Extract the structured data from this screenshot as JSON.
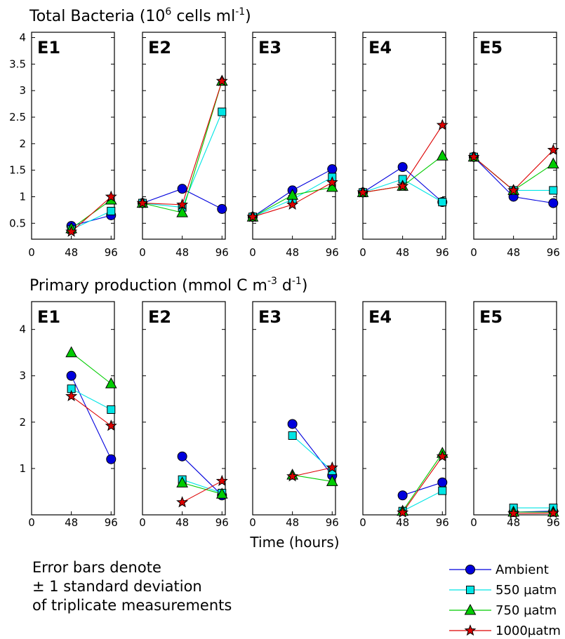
{
  "figure": {
    "top_title": {
      "prefix": "Total Bacteria (10",
      "sup1": "6",
      "mid": " cells ml",
      "sup2": "-1",
      "suffix": ")"
    },
    "bottom_title": {
      "prefix": "Primary production (mmol C m",
      "sup1": "-3",
      "mid": " d",
      "sup2": "-1",
      "suffix": ")"
    },
    "xlabel": "Time (hours)",
    "note_lines": [
      "Error bars denote",
      "± 1 standard deviation",
      "of triplicate measurements"
    ]
  },
  "chart_data": [
    {
      "type": "line",
      "title": "Total Bacteria (10^6 cells ml-1)",
      "xlabel": "Time (hours)",
      "ylim": [
        0.2,
        4.1
      ],
      "yticks": [
        "0.5",
        "1",
        "1.5",
        "2",
        "2.5",
        "3",
        "3.5",
        "4"
      ],
      "xticks": [
        "0",
        "48",
        "96"
      ],
      "xlim": [
        0,
        100
      ],
      "series_colors": {
        "Ambient": "#0000dd",
        "550 µatm": "#00e5e5",
        "750 µatm": "#00cc00",
        "1000µatm": "#dd0000"
      },
      "panels": [
        {
          "label": "E1",
          "x": [
            48,
            96
          ],
          "series": [
            {
              "name": "Ambient",
              "values": [
                0.45,
                0.65
              ]
            },
            {
              "name": "550 µatm",
              "values": [
                0.38,
                0.73
              ]
            },
            {
              "name": "750 µatm",
              "values": [
                0.4,
                0.94
              ]
            },
            {
              "name": "1000µatm",
              "values": [
                0.34,
                1.0
              ]
            }
          ]
        },
        {
          "label": "E2",
          "x": [
            0,
            48,
            96
          ],
          "series": [
            {
              "name": "Ambient",
              "values": [
                0.88,
                1.15,
                0.77
              ]
            },
            {
              "name": "550 µatm",
              "values": [
                0.88,
                0.8,
                2.6
              ]
            },
            {
              "name": "750 µatm",
              "values": [
                0.88,
                0.7,
                3.18
              ]
            },
            {
              "name": "1000µatm",
              "values": [
                0.88,
                0.85,
                3.18
              ]
            }
          ]
        },
        {
          "label": "E3",
          "x": [
            0,
            48,
            96
          ],
          "series": [
            {
              "name": "Ambient",
              "values": [
                0.62,
                1.12,
                1.52
              ]
            },
            {
              "name": "550 µatm",
              "values": [
                0.62,
                0.95,
                1.37
              ]
            },
            {
              "name": "750 µatm",
              "values": [
                0.62,
                1.03,
                1.18
              ]
            },
            {
              "name": "1000µatm",
              "values": [
                0.62,
                0.85,
                1.27
              ]
            }
          ]
        },
        {
          "label": "E4",
          "x": [
            0,
            48,
            96
          ],
          "series": [
            {
              "name": "Ambient",
              "values": [
                1.08,
                1.56,
                0.9
              ]
            },
            {
              "name": "550 µatm",
              "values": [
                1.08,
                1.33,
                0.9
              ]
            },
            {
              "name": "750 µatm",
              "values": [
                1.08,
                1.2,
                1.77
              ]
            },
            {
              "name": "1000µatm",
              "values": [
                1.08,
                1.2,
                2.35
              ]
            }
          ]
        },
        {
          "label": "E5",
          "x": [
            0,
            48,
            96
          ],
          "series": [
            {
              "name": "Ambient",
              "values": [
                1.75,
                1.0,
                0.88
              ]
            },
            {
              "name": "550 µatm",
              "values": [
                1.75,
                1.12,
                1.12
              ]
            },
            {
              "name": "750 µatm",
              "values": [
                1.75,
                1.12,
                1.62
              ]
            },
            {
              "name": "1000µatm",
              "values": [
                1.75,
                1.12,
                1.88
              ]
            }
          ]
        }
      ]
    },
    {
      "type": "line",
      "title": "Primary production (mmol C m-3 d-1)",
      "xlabel": "Time (hours)",
      "ylim": [
        0,
        4.6
      ],
      "yticks": [
        "1",
        "2",
        "3",
        "4"
      ],
      "xticks": [
        "0",
        "48",
        "96"
      ],
      "xlim": [
        0,
        100
      ],
      "panels": [
        {
          "label": "E1",
          "x": [
            48,
            96
          ],
          "series": [
            {
              "name": "Ambient",
              "values": [
                3.0,
                1.2
              ]
            },
            {
              "name": "550 µatm",
              "values": [
                2.72,
                2.27
              ]
            },
            {
              "name": "750 µatm",
              "values": [
                3.5,
                2.83
              ]
            },
            {
              "name": "1000µatm",
              "values": [
                2.56,
                1.92
              ]
            }
          ]
        },
        {
          "label": "E2",
          "x": [
            48,
            96
          ],
          "series": [
            {
              "name": "Ambient",
              "values": [
                1.26,
                0.42
              ]
            },
            {
              "name": "550 µatm",
              "values": [
                0.76,
                0.47
              ]
            },
            {
              "name": "750 µatm",
              "values": [
                0.69,
                0.45
              ]
            },
            {
              "name": "1000µatm",
              "values": [
                0.27,
                0.73
              ]
            }
          ]
        },
        {
          "label": "E3",
          "x": [
            48,
            96
          ],
          "series": [
            {
              "name": "Ambient",
              "values": [
                1.96,
                0.85
              ]
            },
            {
              "name": "550 µatm",
              "values": [
                1.71,
                0.95
              ]
            },
            {
              "name": "750 µatm",
              "values": [
                0.86,
                0.72
              ]
            },
            {
              "name": "1000µatm",
              "values": [
                0.83,
                1.02
              ]
            }
          ]
        },
        {
          "label": "E4",
          "x": [
            48,
            96
          ],
          "series": [
            {
              "name": "Ambient",
              "values": [
                0.42,
                0.7
              ]
            },
            {
              "name": "550 µatm",
              "values": [
                0.08,
                0.52
              ]
            },
            {
              "name": "750 µatm",
              "values": [
                0.08,
                1.33
              ]
            },
            {
              "name": "1000µatm",
              "values": [
                0.05,
                1.26
              ]
            }
          ]
        },
        {
          "label": "E5",
          "x": [
            48,
            96
          ],
          "series": [
            {
              "name": "Ambient",
              "values": [
                0.06,
                0.08
              ]
            },
            {
              "name": "550 µatm",
              "values": [
                0.15,
                0.15
              ]
            },
            {
              "name": "750 µatm",
              "values": [
                0.06,
                0.06
              ]
            },
            {
              "name": "1000µatm",
              "values": [
                0.03,
                0.04
              ]
            }
          ]
        }
      ]
    }
  ],
  "legend": {
    "entries": [
      {
        "name": "Ambient",
        "marker": "circle",
        "color": "#0000dd"
      },
      {
        "name": "550 µatm",
        "marker": "square",
        "color": "#00e5e5"
      },
      {
        "name": "750 µatm",
        "marker": "triangle",
        "color": "#00cc00"
      },
      {
        "name": "1000µatm",
        "marker": "star",
        "color": "#dd0000"
      }
    ]
  }
}
